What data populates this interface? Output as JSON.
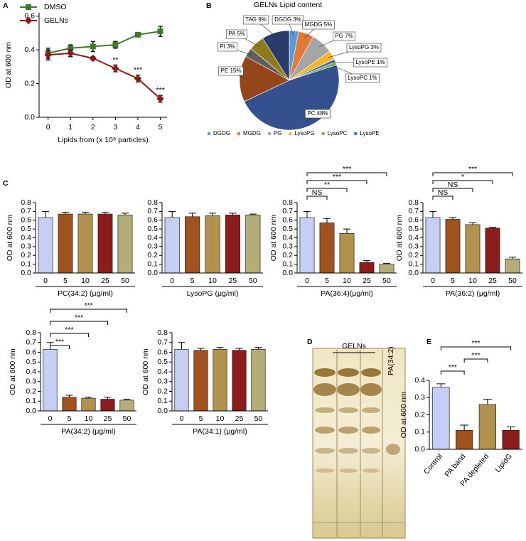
{
  "chart_data": [
    {
      "type": "line",
      "panel_label": "A",
      "ylabel": "OD at 600 nm",
      "xlabel": "Lipids from (x 10⁸ particles)",
      "x": [
        0,
        1,
        2,
        3,
        4,
        5
      ],
      "xlim": [
        -0.4,
        5.3
      ],
      "xticks": [
        0,
        1,
        2,
        3,
        4,
        5
      ],
      "ylim": [
        0,
        0.62
      ],
      "yticks": [
        {
          "value": 0,
          "label": "0.0"
        },
        0.2,
        0.4,
        0.6
      ],
      "series": [
        {
          "name": "DMSO",
          "color": "#3d7a2a",
          "marker": "square",
          "values": [
            0.38,
            0.41,
            0.42,
            0.43,
            0.49,
            0.51
          ],
          "errors": [
            0.03,
            0.02,
            0.03,
            0.02,
            0.01,
            0.03
          ]
        },
        {
          "name": "GELNs",
          "color": "#8b1a1a",
          "marker": "diamond",
          "values": [
            0.37,
            0.38,
            0.35,
            0.29,
            0.23,
            0.11
          ],
          "errors": [
            0.03,
            0.02,
            0.01,
            0.02,
            0.02,
            0.02
          ],
          "annotations": [
            {
              "text": "**",
              "x": 3
            },
            {
              "text": "***",
              "x": 4
            },
            {
              "text": "***",
              "x": 5
            }
          ]
        }
      ]
    },
    {
      "type": "pie",
      "panel_label": "B",
      "title": "GELNs Lipid content",
      "categories": [
        "DGDG",
        "MGDG",
        "PG",
        "LysoPG",
        "LysoPE",
        "LysoPC",
        "PC",
        "PE",
        "PI",
        "PA",
        "TAG"
      ],
      "values": [
        3,
        5,
        7,
        3,
        1,
        1,
        48,
        15,
        3,
        5,
        9
      ],
      "value_labels": [
        "DGDG 3%",
        "MGDG 5%",
        "PG 7%",
        "LysoPG 3%",
        "LysoPE 1%",
        "LysoPC 1%",
        "PC 48%",
        "PE 15%",
        "PI 3%",
        "PA 5%",
        "TAG 9%"
      ],
      "colors": [
        "#5b9bd5",
        "#e07b39",
        "#a5a5a5",
        "#f2b82a",
        "#3f6fbf",
        "#7fae5c",
        "#34508e",
        "#94451a",
        "#5f5f5f",
        "#8e7a1a",
        "#2b3b6b"
      ],
      "legend": [
        "DGDG",
        "MGDG",
        "PG",
        "LysoPG",
        "LysoPC",
        "LysoPE"
      ]
    },
    {
      "type": "bar",
      "panel_label": "C",
      "ylabel": "OD at 600 nm",
      "xlabel": "PC(34:2) (μg/ml)",
      "categories": [
        "0",
        "5",
        "10",
        "25",
        "50"
      ],
      "values": [
        0.63,
        0.67,
        0.67,
        0.67,
        0.66
      ],
      "errors": [
        0.07,
        0.02,
        0.02,
        0.02,
        0.02
      ],
      "colors": [
        "#c6cef5",
        "#a0531f",
        "#b3914f",
        "#8a1c1c",
        "#b5ad77"
      ],
      "ylim": [
        0,
        0.8
      ],
      "yticks": [
        {
          "value": 0,
          "label": "0.0"
        },
        0.1,
        0.2,
        0.3,
        0.4,
        0.5,
        0.6,
        0.7,
        0.8
      ]
    },
    {
      "type": "bar",
      "xlabel": "LysoPG (μg/ml)",
      "categories": [
        "0",
        "5",
        "10",
        "25",
        "50"
      ],
      "values": [
        0.63,
        0.64,
        0.65,
        0.66,
        0.66
      ],
      "errors": [
        0.07,
        0.04,
        0.03,
        0.02,
        0.01
      ],
      "colors": [
        "#c6cef5",
        "#a0531f",
        "#b3914f",
        "#8a1c1c",
        "#b5ad77"
      ],
      "ylim": [
        0,
        0.8
      ],
      "yticks": [
        {
          "value": 0,
          "label": "0.0"
        },
        0.1,
        0.2,
        0.3,
        0.4,
        0.5,
        0.6,
        0.7,
        0.8
      ]
    },
    {
      "type": "bar",
      "ylabel": "OD at 600 nm",
      "xlabel": "PA(36:4)(μg/ml)",
      "categories": [
        "0",
        "5",
        "10",
        "25",
        "50"
      ],
      "values": [
        0.63,
        0.57,
        0.45,
        0.12,
        0.1
      ],
      "errors": [
        0.07,
        0.05,
        0.05,
        0.02,
        0.01
      ],
      "colors": [
        "#c6cef5",
        "#a0531f",
        "#b3914f",
        "#8a1c1c",
        "#b5ad77"
      ],
      "ylim": [
        0,
        0.8
      ],
      "yticks": [
        {
          "value": 0,
          "label": "0.0"
        },
        0.1,
        0.2,
        0.3,
        0.4,
        0.5,
        0.6,
        0.7,
        0.8
      ],
      "brackets": [
        {
          "text": "NS",
          "between": [
            "0",
            "5"
          ]
        },
        {
          "text": "**",
          "between": [
            "0",
            "10"
          ]
        },
        {
          "text": "***",
          "between": [
            "0",
            "25"
          ]
        },
        {
          "text": "***",
          "between": [
            "0",
            "50"
          ]
        }
      ]
    },
    {
      "type": "bar",
      "ylabel": "OD at 600 nm",
      "xlabel": "PA(36:2) (μg/ml)",
      "categories": [
        "0",
        "5",
        "10",
        "25",
        "50"
      ],
      "values": [
        0.63,
        0.61,
        0.55,
        0.51,
        0.16
      ],
      "errors": [
        0.07,
        0.02,
        0.02,
        0.01,
        0.02
      ],
      "colors": [
        "#c6cef5",
        "#a0531f",
        "#b3914f",
        "#8a1c1c",
        "#b5ad77"
      ],
      "ylim": [
        0,
        0.8
      ],
      "yticks": [
        {
          "value": 0,
          "label": "0.0"
        },
        0.1,
        0.2,
        0.3,
        0.4,
        0.5,
        0.6,
        0.7,
        0.8
      ],
      "brackets": [
        {
          "text": "NS",
          "between": [
            "0",
            "5"
          ]
        },
        {
          "text": "NS",
          "between": [
            "0",
            "10"
          ]
        },
        {
          "text": "*",
          "between": [
            "0",
            "25"
          ]
        },
        {
          "text": "***",
          "between": [
            "0",
            "50"
          ]
        }
      ]
    },
    {
      "type": "bar",
      "ylabel": "OD at 600 nm",
      "xlabel": "PA(34:2) (μg/ml)",
      "categories": [
        "0",
        "5",
        "10",
        "25",
        "50"
      ],
      "values": [
        0.63,
        0.14,
        0.13,
        0.12,
        0.11
      ],
      "errors": [
        0.07,
        0.02,
        0.01,
        0.02,
        0.01
      ],
      "colors": [
        "#c6cef5",
        "#a0531f",
        "#b3914f",
        "#8a1c1c",
        "#b5ad77"
      ],
      "ylim": [
        0,
        0.8
      ],
      "yticks": [
        {
          "value": 0,
          "label": "0.0"
        },
        0.1,
        0.2,
        0.3,
        0.4,
        0.5,
        0.6,
        0.7,
        0.8
      ],
      "brackets": [
        {
          "text": "***",
          "between": [
            "0",
            "5"
          ]
        },
        {
          "text": "***",
          "between": [
            "0",
            "10"
          ]
        },
        {
          "text": "***",
          "between": [
            "0",
            "25"
          ]
        },
        {
          "text": "***",
          "between": [
            "0",
            "50"
          ]
        }
      ]
    },
    {
      "type": "bar",
      "ylabel": "OD at 600 nm",
      "xlabel": "PA(34:1) (μg/ml)",
      "categories": [
        "0",
        "5",
        "10",
        "25",
        "50"
      ],
      "values": [
        0.63,
        0.62,
        0.63,
        0.62,
        0.63
      ],
      "errors": [
        0.07,
        0.02,
        0.02,
        0.02,
        0.02
      ],
      "colors": [
        "#c6cef5",
        "#a0531f",
        "#b3914f",
        "#8a1c1c",
        "#b5ad77"
      ],
      "ylim": [
        0,
        0.8
      ],
      "yticks": [
        {
          "value": 0,
          "label": "0.0"
        },
        0.1,
        0.2,
        0.3,
        0.4,
        0.5,
        0.6,
        0.7,
        0.8
      ]
    },
    {
      "type": "bar",
      "panel_label": "E",
      "ylabel": "OD at 600 nm",
      "categories": [
        "Control",
        "PA band",
        "PA depleted",
        "LipidG"
      ],
      "values": [
        0.36,
        0.11,
        0.26,
        0.11
      ],
      "errors": [
        0.02,
        0.03,
        0.03,
        0.02
      ],
      "colors": [
        "#c6cef5",
        "#a0531f",
        "#b3914f",
        "#8a1c1c"
      ],
      "ylim": [
        0,
        0.4
      ],
      "yticks": [
        {
          "value": 0,
          "label": "0.0"
        },
        0.1,
        0.2,
        0.3,
        0.4
      ],
      "brackets": [
        {
          "text": "***",
          "between": [
            "Control",
            "PA band"
          ]
        },
        {
          "text": "***",
          "between": [
            "PA band",
            "PA depleted"
          ]
        },
        {
          "text": "***",
          "between": [
            "Control",
            "LipidG"
          ]
        }
      ]
    }
  ],
  "photo": {
    "panel_label": "D",
    "lanes_label": "GELNs",
    "standard_label": "PA(34:2)"
  }
}
